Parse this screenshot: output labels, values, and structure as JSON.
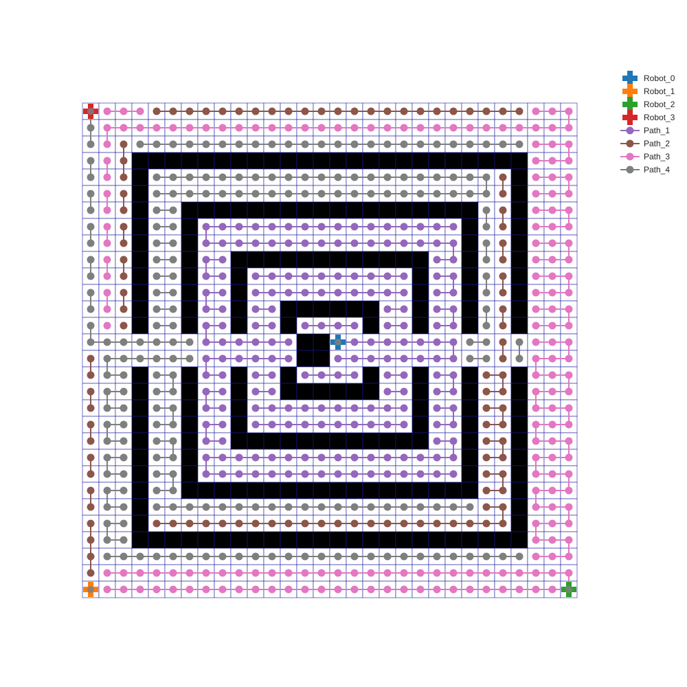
{
  "grid": {
    "cols": 30,
    "rows": 30,
    "line_color": "#1a1aa0",
    "cell_color": "#ffffff",
    "obstacle_color": "#000000",
    "obstacles": {
      "rings": [
        [
          3,
          26,
          3,
          26
        ],
        [
          6,
          23,
          6,
          23
        ],
        [
          9,
          20,
          9,
          20
        ],
        [
          12,
          17,
          12,
          17
        ]
      ],
      "gaps": [
        [
          14,
          3
        ],
        [
          15,
          3
        ],
        [
          14,
          26
        ],
        [
          15,
          26
        ],
        [
          14,
          6
        ],
        [
          15,
          6
        ],
        [
          14,
          23
        ],
        [
          15,
          23
        ],
        [
          14,
          9
        ],
        [
          15,
          9
        ],
        [
          14,
          20
        ],
        [
          15,
          20
        ],
        [
          14,
          12
        ],
        [
          15,
          12
        ],
        [
          14,
          17
        ],
        [
          15,
          17
        ]
      ],
      "center": [
        [
          14,
          13
        ],
        [
          14,
          14
        ],
        [
          15,
          13
        ],
        [
          15,
          14
        ]
      ]
    }
  },
  "legend": [
    {
      "label": "Robot_0",
      "type": "robot",
      "color": "#1f77b4"
    },
    {
      "label": "Robot_1",
      "type": "robot",
      "color": "#ff7f0e"
    },
    {
      "label": "Robot_2",
      "type": "robot",
      "color": "#2ca02c"
    },
    {
      "label": "Robot_3",
      "type": "robot",
      "color": "#d62728"
    },
    {
      "label": "Path_1",
      "type": "path",
      "color": "#9467bd"
    },
    {
      "label": "Path_2",
      "type": "path",
      "color": "#8c564b"
    },
    {
      "label": "Path_3",
      "type": "path",
      "color": "#e377c2"
    },
    {
      "label": "Path_4",
      "type": "path",
      "color": "#7f7f7f"
    }
  ],
  "robots": [
    {
      "name": "Robot_0",
      "color": "#1f77b4",
      "cell": [
        14,
        15
      ]
    },
    {
      "name": "Robot_1",
      "color": "#ff7f0e",
      "cell": [
        29,
        0
      ]
    },
    {
      "name": "Robot_2",
      "color": "#2ca02c",
      "cell": [
        29,
        29
      ]
    },
    {
      "name": "Robot_3",
      "color": "#d62728",
      "cell": [
        0,
        0
      ]
    }
  ],
  "paths": [
    {
      "name": "Path_1",
      "color": "#9467bd",
      "region": "rings_inner",
      "rows": [
        5,
        24
      ],
      "cols": [
        6,
        23
      ]
    },
    {
      "name": "Path_2",
      "color": "#8c564b",
      "region": "outer_loops_top",
      "rows": [
        0,
        14
      ],
      "cols": [
        0,
        29
      ]
    },
    {
      "name": "Path_3",
      "color": "#e377c2",
      "region": "outer_border",
      "rows": [
        0,
        29
      ],
      "cols": [
        0,
        29
      ]
    },
    {
      "name": "Path_4",
      "color": "#7f7f7f",
      "region": "outer_loops_side",
      "rows": [
        0,
        28
      ],
      "cols": [
        0,
        25
      ]
    }
  ]
}
